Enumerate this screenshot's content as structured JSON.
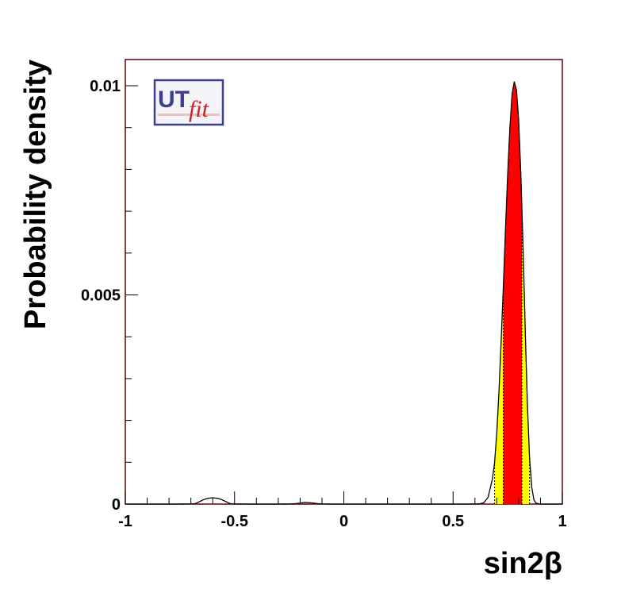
{
  "chart_data": {
    "type": "area",
    "xlabel": "sin2β",
    "ylabel": "Probability density",
    "xlim": [
      -1,
      1
    ],
    "ylim": [
      0,
      0.0105
    ],
    "xticks": [
      -1,
      -0.5,
      0,
      0.5,
      1
    ],
    "xtick_labels": [
      "-1",
      "-0.5",
      "0",
      "0.5",
      "1"
    ],
    "yticks": [
      0,
      0.005,
      0.01
    ],
    "ytick_labels": [
      "0",
      "0.005",
      "0.01"
    ],
    "grid": false,
    "legend": "none",
    "x": [
      -1.0,
      -0.9,
      -0.8,
      -0.75,
      -0.7,
      -0.68,
      -0.66,
      -0.64,
      -0.62,
      -0.6,
      -0.58,
      -0.56,
      -0.54,
      -0.52,
      -0.5,
      -0.45,
      -0.4,
      -0.3,
      -0.25,
      -0.22,
      -0.2,
      -0.18,
      -0.16,
      -0.14,
      -0.12,
      -0.1,
      -0.05,
      0.0,
      0.2,
      0.4,
      0.55,
      0.6,
      0.62,
      0.64,
      0.66,
      0.68,
      0.69,
      0.7,
      0.71,
      0.72,
      0.73,
      0.74,
      0.75,
      0.76,
      0.77,
      0.78,
      0.79,
      0.8,
      0.81,
      0.82,
      0.83,
      0.84,
      0.85,
      0.86,
      0.87,
      0.88,
      0.9,
      0.95,
      1.0
    ],
    "series": [
      {
        "values": [
          0,
          0,
          0,
          5e-07,
          3e-06,
          1e-05,
          6e-05,
          0.00011,
          0.00014,
          0.00015,
          0.00014,
          0.00011,
          6e-05,
          1e-05,
          2e-06,
          0,
          0,
          0,
          2e-06,
          1e-05,
          2.5e-05,
          4e-05,
          3.5e-05,
          2.5e-05,
          1e-05,
          3e-06,
          0,
          0,
          0,
          0,
          0,
          1e-06,
          5e-06,
          3e-05,
          0.00016,
          0.0006,
          0.001,
          0.0017,
          0.0027,
          0.0039,
          0.0052,
          0.0066,
          0.0079,
          0.009,
          0.0098,
          0.0101,
          0.0099,
          0.0092,
          0.0079,
          0.0062,
          0.0042,
          0.0024,
          0.0011,
          0.0004,
          0.0001,
          2e-05,
          0,
          0,
          0
        ]
      }
    ],
    "intervals": {
      "outer": [
        0.69,
        0.85
      ],
      "inner": [
        0.73,
        0.815
      ]
    },
    "colors": {
      "outer_fill": "#ffff00",
      "inner_fill": "#ff0000",
      "line": "#000000",
      "frame": "#660000"
    }
  },
  "logo": {
    "primary": "UT",
    "secondary": "fit",
    "primary_color": "#3a3f8f",
    "secondary_color": "#cc2222"
  }
}
